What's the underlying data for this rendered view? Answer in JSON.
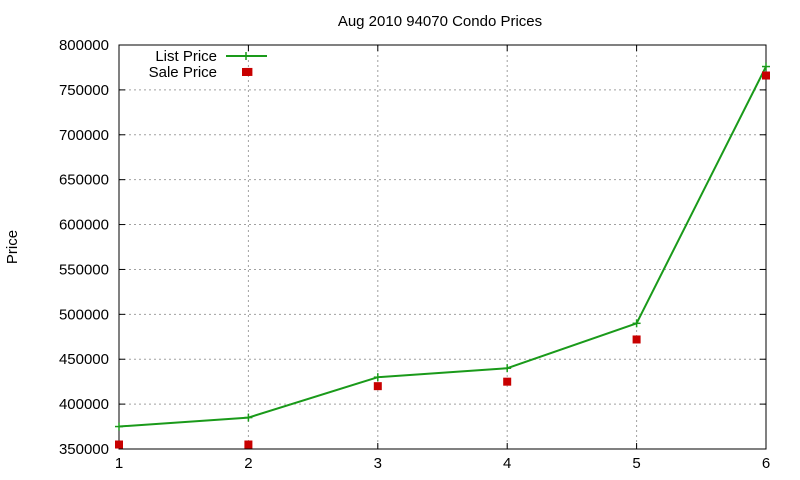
{
  "chart_data": {
    "type": "scatter",
    "title": "Aug 2010 94070 Condo Prices",
    "ylabel": "Price",
    "xlabel": "",
    "xlim": [
      1,
      6
    ],
    "ylim": [
      350000,
      800000
    ],
    "xticks": [
      1,
      2,
      3,
      4,
      5,
      6
    ],
    "yticks": [
      350000,
      400000,
      450000,
      500000,
      550000,
      600000,
      650000,
      700000,
      750000,
      800000
    ],
    "grid": true,
    "legend_position": "top-left",
    "series": [
      {
        "name": "List Price",
        "style": "linespoints",
        "marker": "plus",
        "color": "#1a9a1a",
        "points": [
          {
            "x": 1,
            "y": 375000
          },
          {
            "x": 2,
            "y": 385000
          },
          {
            "x": 3,
            "y": 430000
          },
          {
            "x": 4,
            "y": 440000
          },
          {
            "x": 5,
            "y": 490000
          },
          {
            "x": 6,
            "y": 776000
          }
        ]
      },
      {
        "name": "Sale Price",
        "style": "points",
        "marker": "square",
        "color": "#c80000",
        "points": [
          {
            "x": 1,
            "y": 355000
          },
          {
            "x": 2,
            "y": 355000
          },
          {
            "x": 2,
            "y": 770000
          },
          {
            "x": 3,
            "y": 420000
          },
          {
            "x": 4,
            "y": 425000
          },
          {
            "x": 5,
            "y": 472000
          },
          {
            "x": 6,
            "y": 766000
          }
        ]
      }
    ]
  }
}
